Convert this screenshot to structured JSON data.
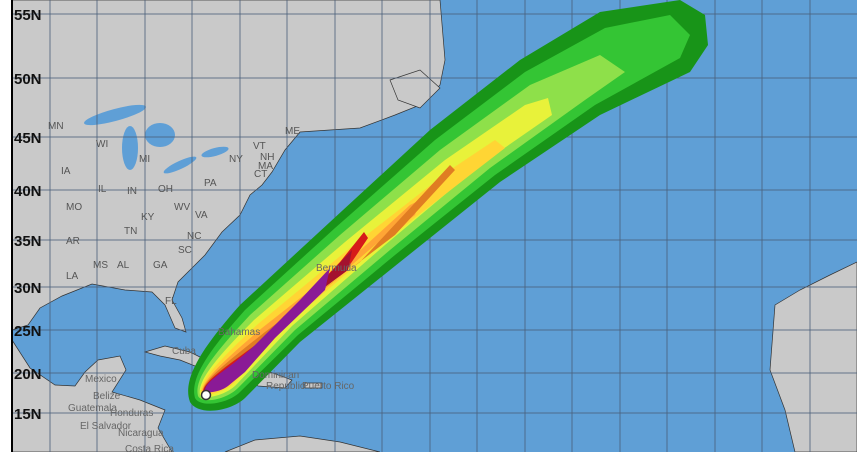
{
  "colors": {
    "ocean": "#5f9fd6",
    "land": "#c9c9c9",
    "swath_bands": [
      "#189418",
      "#34c534",
      "#8ee04a",
      "#e8f23a",
      "#ffd534",
      "#ffa535",
      "#e07d22",
      "#d61a1a",
      "#a3122f",
      "#8a1a96"
    ]
  },
  "latitude_labels": [
    "55N",
    "50N",
    "45N",
    "40N",
    "35N",
    "30N",
    "25N",
    "20N",
    "15N"
  ],
  "state_labels": [
    "MN",
    "WI",
    "MI",
    "IA",
    "IL",
    "IN",
    "OH",
    "PA",
    "NY",
    "ME",
    "VT",
    "NH",
    "MA",
    "CT",
    "MO",
    "KY",
    "WV",
    "VA",
    "TN",
    "NC",
    "AR",
    "SC",
    "MS",
    "AL",
    "GA",
    "LA",
    "FL"
  ],
  "place_labels": [
    "Mexico",
    "Belize",
    "Guatemala",
    "Honduras",
    "El Salvador",
    "Nicaragua",
    "Costa Rica",
    "Cuba",
    "Bahamas",
    "Dominican",
    "Republic",
    "Puerto Rico",
    "Bermuda"
  ],
  "storm_center_icon": "storm-position-marker"
}
